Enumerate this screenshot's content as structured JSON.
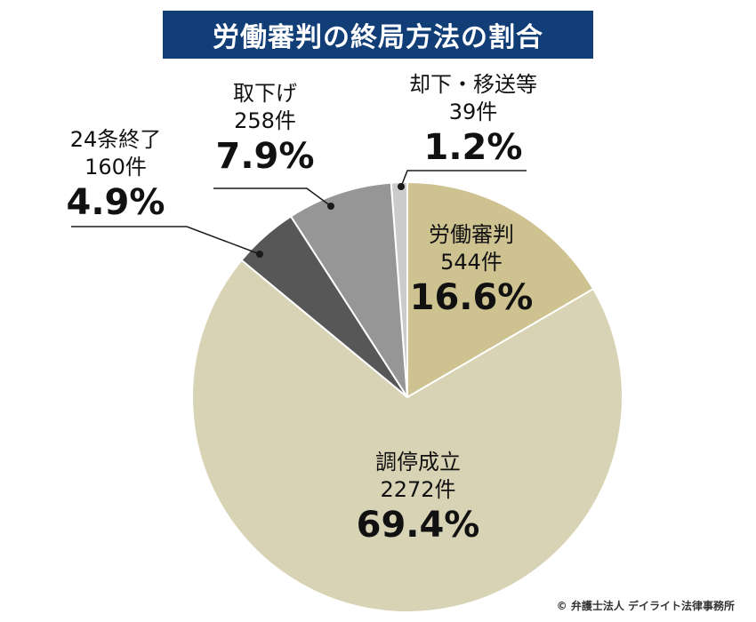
{
  "title": "労働審判の終局方法の割合",
  "credit": "© 弁護士法人 デイライト法律事務所",
  "chart_data": {
    "type": "pie",
    "title": "労働審判の終局方法の割合",
    "unit": "件",
    "slices": [
      {
        "label": "労働審判",
        "count": 544,
        "count_text": "544件",
        "percent": 16.6,
        "percent_text": "16.6%",
        "color": "#cdc290"
      },
      {
        "label": "調停成立",
        "count": 2272,
        "count_text": "2272件",
        "percent": 69.4,
        "percent_text": "69.4%",
        "color": "#d8d3b4"
      },
      {
        "label": "24条終了",
        "count": 160,
        "count_text": "160件",
        "percent": 4.9,
        "percent_text": "4.9%",
        "color": "#575757"
      },
      {
        "label": "取下げ",
        "count": 258,
        "count_text": "258件",
        "percent": 7.9,
        "percent_text": "7.9%",
        "color": "#969696"
      },
      {
        "label": "却下・移送等",
        "count": 39,
        "count_text": "39件",
        "percent": 1.2,
        "percent_text": "1.2%",
        "color": "#cbcbcb"
      }
    ],
    "start_angle_deg": 0,
    "direction": "clockwise"
  }
}
